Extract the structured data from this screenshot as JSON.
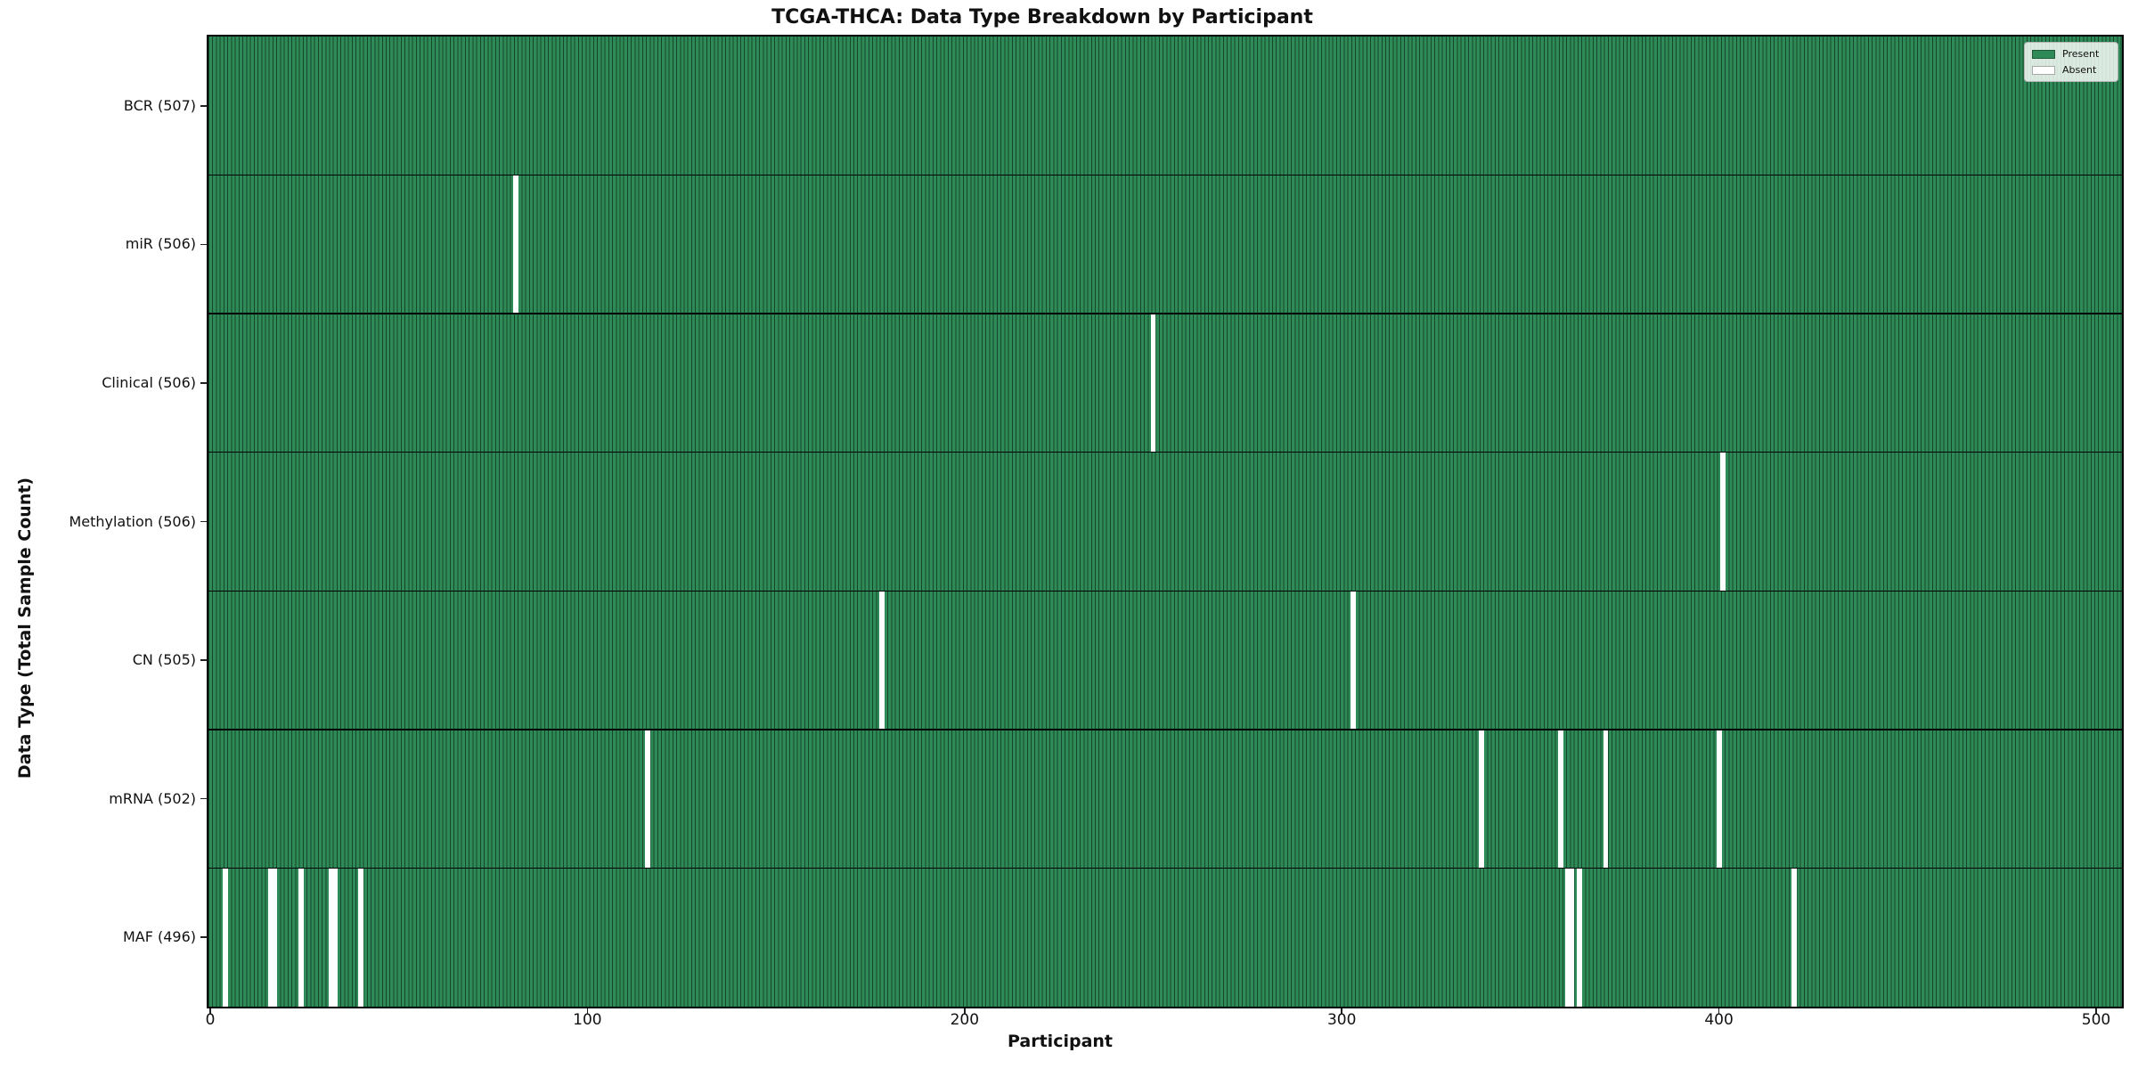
{
  "figure": {
    "title": "TCGA-THCA: Data Type Breakdown by Participant",
    "xlabel": "Participant",
    "ylabel": "Data Type (Total Sample Count)"
  },
  "legend": {
    "position": "upper right",
    "present_label": "Present",
    "absent_label": "Absent"
  },
  "colors": {
    "present": "#2e8b57",
    "absent": "#ffffff",
    "bar_edge": "rgba(0,0,0,0.5)",
    "frame": "#000000",
    "tick": "#222222",
    "text": "#111111"
  },
  "chart_data": {
    "type": "heatmap",
    "title": "TCGA-THCA: Data Type Breakdown by Participant",
    "xlabel": "Participant",
    "ylabel": "Data Type (Total Sample Count)",
    "x_ticks": [
      0,
      100,
      200,
      300,
      400,
      500
    ],
    "x_range": [
      0,
      506
    ],
    "total_participants": 507,
    "grid": false,
    "legend_entries": [
      "Present",
      "Absent"
    ],
    "legend_position": "upper right",
    "rows": [
      {
        "name": "BCR",
        "label": "BCR (507)",
        "total": 507,
        "absent_indices": []
      },
      {
        "name": "miR",
        "label": "miR (506)",
        "total": 506,
        "absent_indices": [
          81
        ]
      },
      {
        "name": "Clinical",
        "label": "Clinical (506)",
        "total": 506,
        "absent_indices": [
          250
        ]
      },
      {
        "name": "Methylation",
        "label": "Methylation (506)",
        "total": 506,
        "absent_indices": [
          401
        ]
      },
      {
        "name": "CN",
        "label": "CN (505)",
        "total": 505,
        "absent_indices": [
          178,
          303
        ]
      },
      {
        "name": "mRNA",
        "label": "mRNA (502)",
        "total": 502,
        "absent_indices": [
          116,
          337,
          358,
          370,
          400
        ]
      },
      {
        "name": "MAF",
        "label": "MAF (496)",
        "total": 496,
        "absent_indices": [
          4,
          16,
          17,
          24,
          32,
          33,
          40,
          360,
          361,
          363,
          420
        ]
      }
    ]
  }
}
